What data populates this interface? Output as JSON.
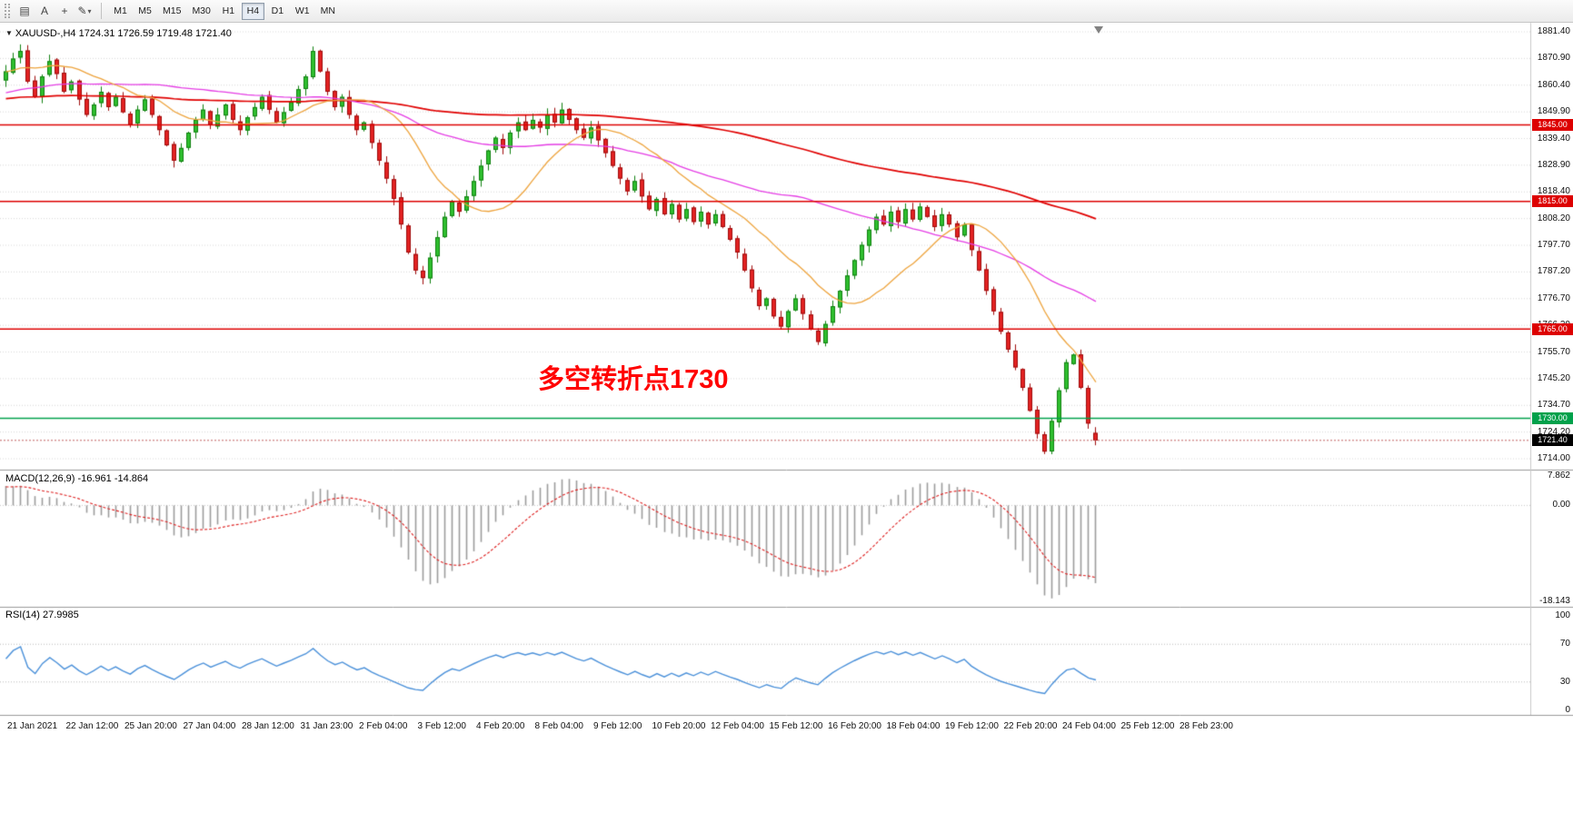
{
  "toolbar": {
    "tools": [
      {
        "name": "chart-window-icon",
        "glyph": "▤"
      },
      {
        "name": "cursor-tool-icon",
        "glyph": "A"
      },
      {
        "name": "crosshair-tool-icon",
        "glyph": "+"
      },
      {
        "name": "draw-tools-icon",
        "glyph": "✎",
        "caret": "▾"
      }
    ],
    "timeframes": [
      {
        "label": "M1",
        "active": false
      },
      {
        "label": "M5",
        "active": false
      },
      {
        "label": "M15",
        "active": false
      },
      {
        "label": "M30",
        "active": false
      },
      {
        "label": "H1",
        "active": false
      },
      {
        "label": "H4",
        "active": true
      },
      {
        "label": "D1",
        "active": false
      },
      {
        "label": "W1",
        "active": false
      },
      {
        "label": "MN",
        "active": false
      }
    ]
  },
  "main_chart": {
    "collapse_arrow": "▼",
    "header": "XAUUSD-,H4  1724.31 1726.59 1719.48 1721.40",
    "symbol": "XAUUSD-",
    "period": "H4",
    "ohlc": {
      "open": "1724.31",
      "high": "1726.59",
      "low": "1719.48",
      "close": "1721.40"
    },
    "annotation": {
      "text": "多空转折点1730",
      "color": "#FF0000"
    },
    "price_scale": [
      "1881.40",
      "1870.90",
      "1860.40",
      "1849.90",
      "1839.40",
      "1828.90",
      "1818.40",
      "1808.20",
      "1797.70",
      "1787.20",
      "1776.70",
      "1766.20",
      "1755.70",
      "1745.20",
      "1734.70",
      "1724.20",
      "1714.00"
    ],
    "hlines": [
      {
        "price": 1845.0,
        "label": "1845.00",
        "color": "#DD0000",
        "type": "resistance"
      },
      {
        "price": 1815.0,
        "label": "1815.00",
        "color": "#DD0000",
        "type": "resistance"
      },
      {
        "price": 1765.0,
        "label": "1765.00",
        "color": "#DD0000",
        "type": "resistance"
      },
      {
        "price": 1730.0,
        "label": "1730.00",
        "color": "#00A14B",
        "type": "support"
      }
    ],
    "current_price_tag": {
      "price": 1721.4,
      "label": "1721.40",
      "bg": "#000000"
    },
    "colors": {
      "up": "#2FBF2F",
      "up_border": "#0E7F0E",
      "down": "#E32222",
      "down_border": "#9E0B0B",
      "ma_fast": "#EDA33C",
      "ma_mid": "#E43CE4",
      "ma_slow": "#E00000",
      "grid": "#D6D6D6",
      "bg": "#FFFFFF"
    }
  },
  "macd_panel": {
    "header": "MACD(12,26,9) -16.961 -14.864",
    "scale": {
      "max": "7.862",
      "zero": "0.00",
      "min": "-18.143"
    },
    "colors": {
      "histogram": "#9C9C9C",
      "signal": "#DD2020"
    }
  },
  "rsi_panel": {
    "header": "RSI(14) 27.9985",
    "scale": [
      "100",
      "70",
      "30",
      "0"
    ],
    "levels": [
      70,
      30
    ],
    "colors": {
      "line": "#4A90D9"
    }
  },
  "time_axis": {
    "labels": [
      "21 Jan 2021",
      "22 Jan 12:00",
      "25 Jan 20:00",
      "27 Jan 04:00",
      "28 Jan 12:00",
      "31 Jan 23:00",
      "2 Feb 04:00",
      "3 Feb 12:00",
      "4 Feb 20:00",
      "8 Feb 04:00",
      "9 Feb 12:00",
      "10 Feb 20:00",
      "12 Feb 04:00",
      "15 Feb 12:00",
      "16 Feb 20:00",
      "18 Feb 04:00",
      "19 Feb 12:00",
      "22 Feb 20:00",
      "24 Feb 04:00",
      "25 Feb 12:00",
      "28 Feb 23:00"
    ]
  },
  "chart_data": {
    "type": "candlestick",
    "symbol": "XAUUSD",
    "timeframe": "H4",
    "closes": [
      1866,
      1871,
      1874,
      1862,
      1856,
      1864,
      1870,
      1865,
      1858,
      1862,
      1855,
      1849,
      1853,
      1858,
      1852,
      1856,
      1850,
      1845,
      1851,
      1855,
      1849,
      1843,
      1837,
      1831,
      1836,
      1842,
      1847,
      1851,
      1845,
      1849,
      1853,
      1847,
      1843,
      1848,
      1852,
      1856,
      1851,
      1846,
      1850,
      1854,
      1859,
      1864,
      1874,
      1866,
      1858,
      1852,
      1856,
      1849,
      1843,
      1846,
      1838,
      1831,
      1824,
      1816,
      1806,
      1795,
      1788,
      1785,
      1793,
      1801,
      1809,
      1815,
      1811,
      1817,
      1823,
      1829,
      1835,
      1840,
      1836,
      1842,
      1846,
      1843,
      1847,
      1844,
      1849,
      1846,
      1851,
      1847,
      1843,
      1840,
      1844,
      1839,
      1834,
      1829,
      1824,
      1819,
      1823,
      1817,
      1812,
      1816,
      1810,
      1814,
      1808,
      1812,
      1807,
      1811,
      1806,
      1810,
      1805,
      1800,
      1795,
      1788,
      1781,
      1774,
      1777,
      1770,
      1766,
      1772,
      1777,
      1771,
      1765,
      1760,
      1767,
      1774,
      1780,
      1786,
      1792,
      1798,
      1804,
      1809,
      1806,
      1811,
      1807,
      1812,
      1808,
      1813,
      1809,
      1805,
      1810,
      1806,
      1801,
      1806,
      1796,
      1788,
      1780,
      1772,
      1764,
      1757,
      1750,
      1742,
      1733,
      1724,
      1717,
      1729,
      1741,
      1752,
      1755,
      1742,
      1728,
      1721.4
    ],
    "last_bar": {
      "open": 1724.31,
      "high": 1726.59,
      "low": 1719.48,
      "close": 1721.4
    },
    "indicators": {
      "macd": {
        "fast": 12,
        "slow": 26,
        "signal": 9,
        "current": [
          -16.961,
          -14.864
        ]
      },
      "rsi": {
        "period": 14,
        "current": 27.9985
      }
    }
  }
}
